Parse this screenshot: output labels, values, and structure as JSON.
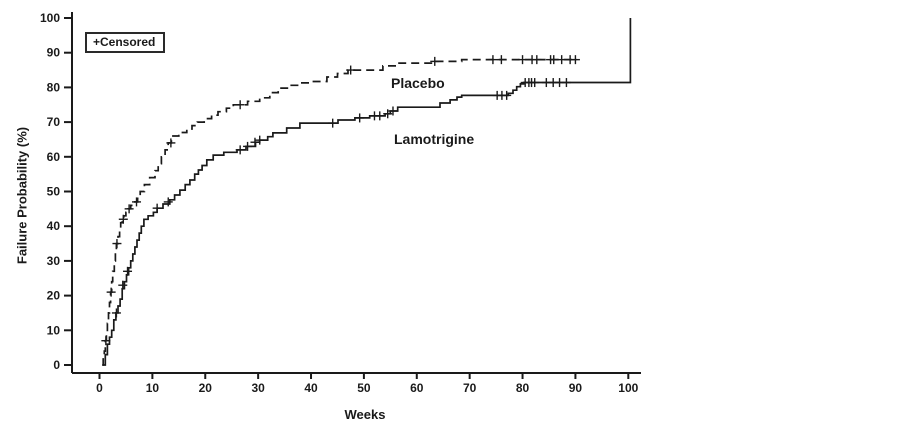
{
  "figure": {
    "legend_label": "+Censored",
    "xlabel": "Weeks",
    "ylabel": "Failure Probability (%)"
  },
  "chart_data": {
    "type": "line",
    "subtype": "kaplan-meier-step-failure-probability",
    "title": "",
    "xlabel": "Weeks",
    "ylabel": "Failure Probability (%)",
    "xlim": [
      0,
      100
    ],
    "ylim": [
      0,
      100
    ],
    "x_ticks": [
      0,
      10,
      20,
      30,
      40,
      50,
      60,
      70,
      80,
      90,
      100
    ],
    "y_ticks": [
      0,
      10,
      20,
      30,
      40,
      50,
      60,
      70,
      80,
      90,
      100
    ],
    "grid": false,
    "legend": "+Censored",
    "legend_position": "inside-top-left",
    "line_color": "#1a1a1a",
    "series": [
      {
        "name": "Placebo",
        "line_style": "dashed",
        "steps": [
          [
            0.5,
            0
          ],
          [
            0.7,
            2
          ],
          [
            0.9,
            4
          ],
          [
            1.1,
            7
          ],
          [
            1.3,
            9
          ],
          [
            1.5,
            12
          ],
          [
            1.7,
            15
          ],
          [
            1.9,
            18
          ],
          [
            2.1,
            21
          ],
          [
            2.3,
            24
          ],
          [
            2.5,
            27
          ],
          [
            2.8,
            30
          ],
          [
            3.0,
            33
          ],
          [
            3.2,
            35
          ],
          [
            3.5,
            37
          ],
          [
            3.8,
            39
          ],
          [
            4.0,
            41
          ],
          [
            4.3,
            42
          ],
          [
            4.6,
            43
          ],
          [
            5.0,
            44
          ],
          [
            5.4,
            45
          ],
          [
            5.9,
            46
          ],
          [
            6.5,
            47
          ],
          [
            7.2,
            48
          ],
          [
            7.7,
            50
          ],
          [
            8.5,
            52
          ],
          [
            9.5,
            54
          ],
          [
            10.5,
            56
          ],
          [
            11.1,
            58
          ],
          [
            11.7,
            60
          ],
          [
            12.4,
            62
          ],
          [
            13.0,
            64
          ],
          [
            13.6,
            66
          ],
          [
            15.0,
            67
          ],
          [
            16.5,
            68
          ],
          [
            17.5,
            69
          ],
          [
            18.5,
            70
          ],
          [
            19.8,
            71
          ],
          [
            21.2,
            72
          ],
          [
            22.4,
            73
          ],
          [
            24.0,
            74
          ],
          [
            25.3,
            75
          ],
          [
            28.0,
            76
          ],
          [
            30.3,
            77
          ],
          [
            32.2,
            78.5
          ],
          [
            33.8,
            79.8
          ],
          [
            36.0,
            80.6
          ],
          [
            38.0,
            81.3
          ],
          [
            40.2,
            81.7
          ],
          [
            43.0,
            83
          ],
          [
            45.0,
            84
          ],
          [
            47.0,
            85
          ],
          [
            53.6,
            86.2
          ],
          [
            56.4,
            87
          ],
          [
            63.0,
            87.5
          ],
          [
            68.5,
            88
          ],
          [
            90.3,
            88
          ]
        ],
        "censored": [
          [
            1.2,
            7
          ],
          [
            2.2,
            21
          ],
          [
            3.3,
            35
          ],
          [
            4.5,
            42
          ],
          [
            5.6,
            45
          ],
          [
            7.0,
            47
          ],
          [
            13.5,
            64
          ],
          [
            26.6,
            75
          ],
          [
            47.5,
            85
          ],
          [
            63.4,
            87.5
          ],
          [
            74.4,
            88
          ],
          [
            76.0,
            88
          ],
          [
            80.0,
            88
          ],
          [
            81.8,
            88
          ],
          [
            82.7,
            88
          ],
          [
            85.3,
            88
          ],
          [
            85.9,
            88
          ],
          [
            87.4,
            88
          ],
          [
            89.0,
            88
          ],
          [
            90.0,
            88
          ]
        ]
      },
      {
        "name": "Lamotrigine",
        "line_style": "solid",
        "steps": [
          [
            0.7,
            0
          ],
          [
            1.1,
            3
          ],
          [
            1.5,
            6
          ],
          [
            1.9,
            8
          ],
          [
            2.3,
            10
          ],
          [
            2.7,
            13
          ],
          [
            3.1,
            15
          ],
          [
            3.5,
            17
          ],
          [
            3.9,
            19
          ],
          [
            4.3,
            22
          ],
          [
            4.7,
            24
          ],
          [
            5.1,
            26
          ],
          [
            5.5,
            28
          ],
          [
            5.9,
            30
          ],
          [
            6.3,
            32
          ],
          [
            6.7,
            34
          ],
          [
            7.1,
            36
          ],
          [
            7.5,
            38
          ],
          [
            7.9,
            40
          ],
          [
            8.4,
            42
          ],
          [
            9.2,
            43
          ],
          [
            10.2,
            44
          ],
          [
            10.9,
            45.2
          ],
          [
            12.0,
            46.4
          ],
          [
            13.3,
            47.6
          ],
          [
            14.2,
            49
          ],
          [
            15.2,
            50.4
          ],
          [
            16.2,
            52
          ],
          [
            17.1,
            53.3
          ],
          [
            18.0,
            55
          ],
          [
            18.7,
            56.2
          ],
          [
            19.4,
            57.5
          ],
          [
            20.3,
            59.1
          ],
          [
            21.5,
            60.5
          ],
          [
            23.5,
            61.3
          ],
          [
            26.0,
            62
          ],
          [
            27.7,
            63
          ],
          [
            29.5,
            64.2
          ],
          [
            30.3,
            64.8
          ],
          [
            31.8,
            65.8
          ],
          [
            32.8,
            66.9
          ],
          [
            35.4,
            68.3
          ],
          [
            37.9,
            69.7
          ],
          [
            45.1,
            70.6
          ],
          [
            48.3,
            71.2
          ],
          [
            51.1,
            71.8
          ],
          [
            54.0,
            72.4
          ],
          [
            55.0,
            73.2
          ],
          [
            56.4,
            74.3
          ],
          [
            64.4,
            75.5
          ],
          [
            66.3,
            76.4
          ],
          [
            67.6,
            77.2
          ],
          [
            68.5,
            77.7
          ],
          [
            77.3,
            78.3
          ],
          [
            78.2,
            79.2
          ],
          [
            78.9,
            80.2
          ],
          [
            79.6,
            81.0
          ],
          [
            80.2,
            81.4
          ],
          [
            100.3,
            81.4
          ],
          [
            100.4,
            100
          ]
        ],
        "censored": [
          [
            3.2,
            15
          ],
          [
            4.4,
            23
          ],
          [
            5.3,
            27
          ],
          [
            10.9,
            45.2
          ],
          [
            13.0,
            47
          ],
          [
            26.6,
            62
          ],
          [
            28.0,
            63
          ],
          [
            29.4,
            64.2
          ],
          [
            30.3,
            64.8
          ],
          [
            44.1,
            69.7
          ],
          [
            49.2,
            71.2
          ],
          [
            52.0,
            71.8
          ],
          [
            53.0,
            71.8
          ],
          [
            54.5,
            72.4
          ],
          [
            55.5,
            73.2
          ],
          [
            75.2,
            77.7
          ],
          [
            76.1,
            77.7
          ],
          [
            77.0,
            77.7
          ],
          [
            80.5,
            81.4
          ],
          [
            81.2,
            81.4
          ],
          [
            81.7,
            81.4
          ],
          [
            82.3,
            81.4
          ],
          [
            84.5,
            81.4
          ],
          [
            85.8,
            81.4
          ],
          [
            87.0,
            81.4
          ],
          [
            88.3,
            81.4
          ]
        ]
      }
    ]
  }
}
